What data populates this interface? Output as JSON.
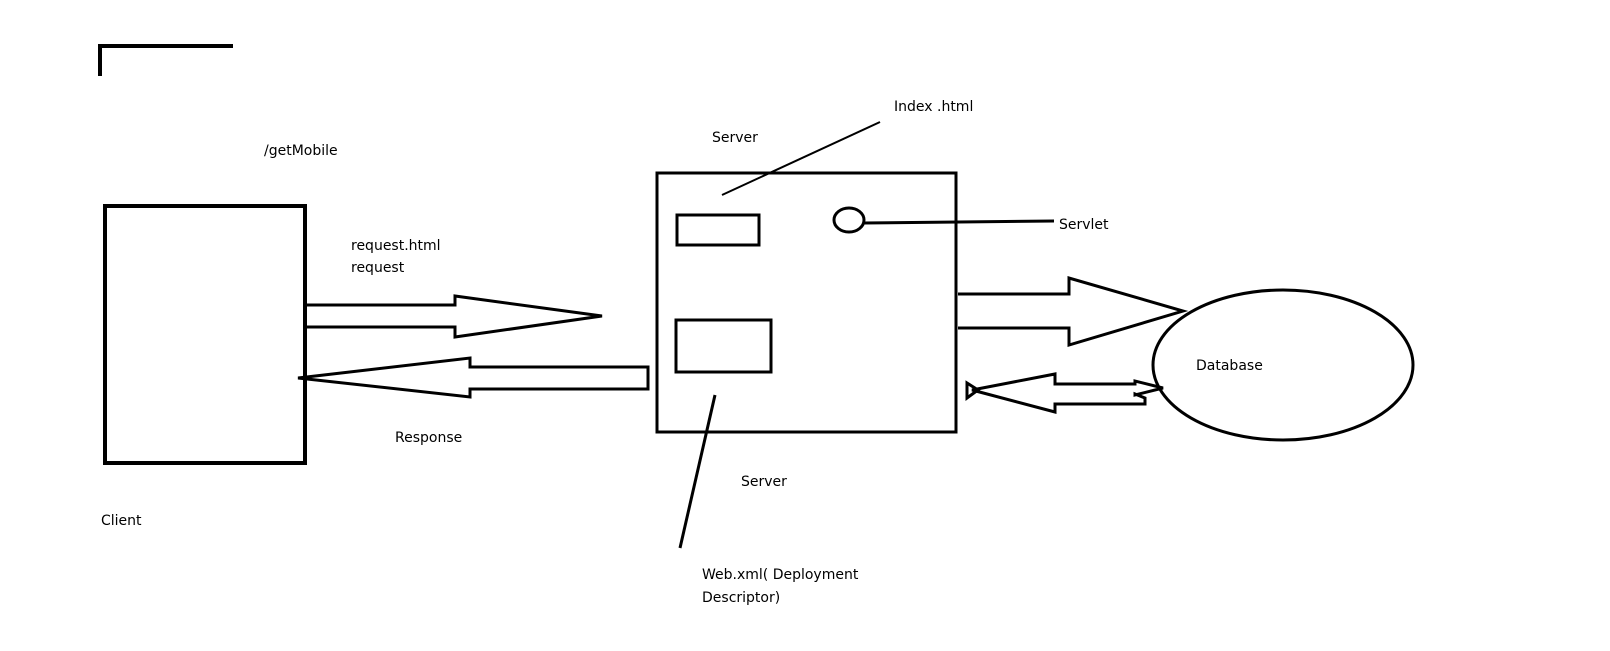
{
  "labels": {
    "get_mobile": "/getMobile",
    "request_html": "request.html",
    "request": "request",
    "response": "Response",
    "client": "Client",
    "server_top": "Server",
    "index_html": "Index .html",
    "servlet": "Servlet",
    "server_bottom": "Server",
    "web_xml_line1": "Web.xml( Deployment",
    "web_xml_line2": "Descriptor)",
    "database": "Database"
  },
  "colors": {
    "ink": "#000000",
    "background": "#ffffff"
  }
}
